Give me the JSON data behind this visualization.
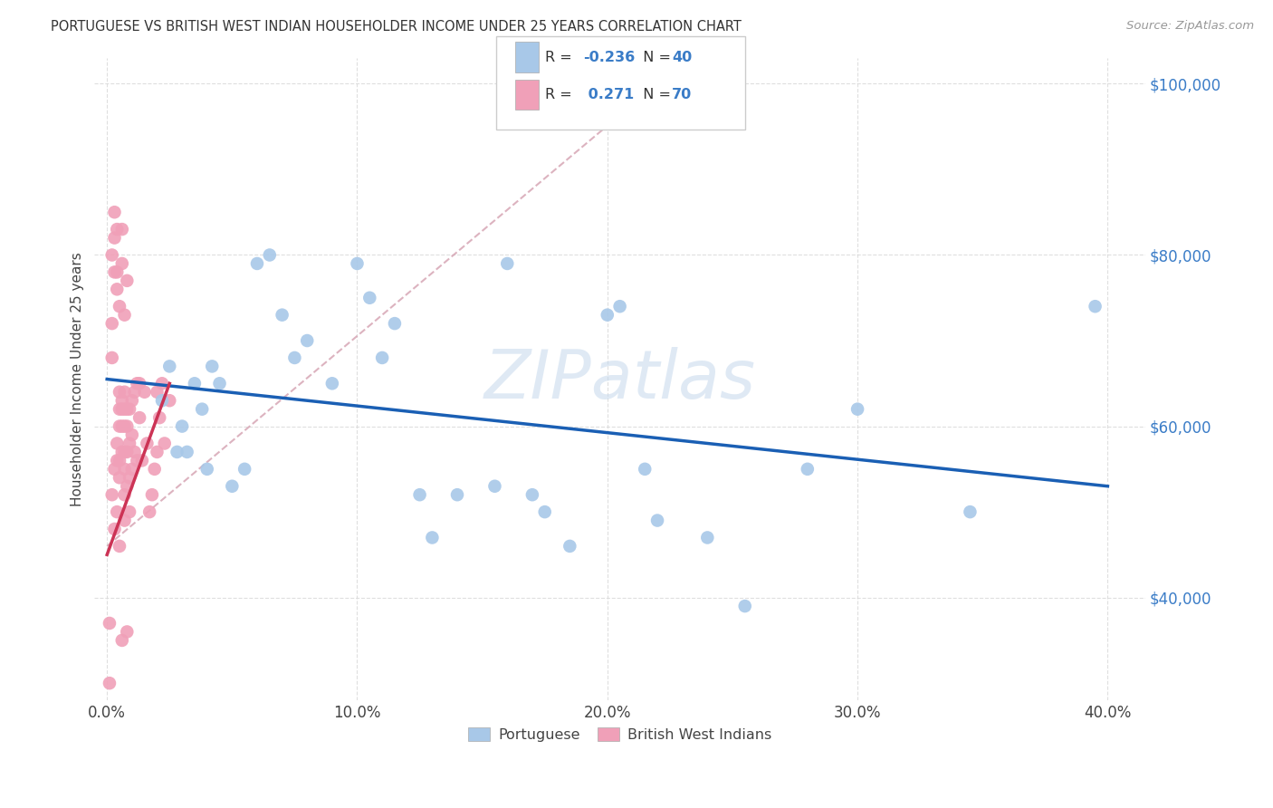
{
  "title": "PORTUGUESE VS BRITISH WEST INDIAN HOUSEHOLDER INCOME UNDER 25 YEARS CORRELATION CHART",
  "source": "Source: ZipAtlas.com",
  "xlabel_vals": [
    0.0,
    0.1,
    0.2,
    0.3,
    0.4
  ],
  "ylabel_vals": [
    40000,
    60000,
    80000,
    100000
  ],
  "xlim": [
    -0.005,
    0.415
  ],
  "ylim": [
    28000,
    103000
  ],
  "watermark": "ZIPatlas",
  "blue_color": "#a8c8e8",
  "pink_color": "#f0a0b8",
  "blue_trend_color": "#1a5fb4",
  "pink_trend_color": "#cc3355",
  "dashed_color": "#d4a0b0",
  "background_color": "#ffffff",
  "grid_color": "#d8d8d8",
  "r_blue": "-0.236",
  "n_blue": "40",
  "r_pink": "0.271",
  "n_pink": "70",
  "portuguese_x": [
    0.022,
    0.025,
    0.028,
    0.03,
    0.032,
    0.035,
    0.038,
    0.04,
    0.042,
    0.045,
    0.05,
    0.055,
    0.06,
    0.065,
    0.07,
    0.075,
    0.08,
    0.09,
    0.1,
    0.105,
    0.11,
    0.115,
    0.125,
    0.13,
    0.14,
    0.155,
    0.16,
    0.17,
    0.175,
    0.185,
    0.2,
    0.205,
    0.215,
    0.22,
    0.24,
    0.255,
    0.28,
    0.3,
    0.345,
    0.395
  ],
  "portuguese_y": [
    63000,
    67000,
    57000,
    60000,
    57000,
    65000,
    62000,
    55000,
    67000,
    65000,
    53000,
    55000,
    79000,
    80000,
    73000,
    68000,
    70000,
    65000,
    79000,
    75000,
    68000,
    72000,
    52000,
    47000,
    52000,
    53000,
    79000,
    52000,
    50000,
    46000,
    73000,
    74000,
    55000,
    49000,
    47000,
    39000,
    55000,
    62000,
    50000,
    74000
  ],
  "bwi_x": [
    0.002,
    0.003,
    0.003,
    0.004,
    0.004,
    0.004,
    0.005,
    0.005,
    0.005,
    0.005,
    0.005,
    0.006,
    0.006,
    0.006,
    0.006,
    0.007,
    0.007,
    0.007,
    0.007,
    0.007,
    0.007,
    0.008,
    0.008,
    0.008,
    0.008,
    0.009,
    0.009,
    0.009,
    0.009,
    0.01,
    0.01,
    0.01,
    0.011,
    0.011,
    0.012,
    0.012,
    0.013,
    0.013,
    0.014,
    0.015,
    0.016,
    0.017,
    0.018,
    0.019,
    0.02,
    0.02,
    0.021,
    0.022,
    0.023,
    0.025,
    0.001,
    0.001,
    0.002,
    0.002,
    0.002,
    0.003,
    0.003,
    0.003,
    0.004,
    0.004,
    0.004,
    0.005,
    0.005,
    0.006,
    0.006,
    0.006,
    0.007,
    0.007,
    0.008,
    0.008
  ],
  "bwi_y": [
    52000,
    48000,
    55000,
    50000,
    56000,
    58000,
    54000,
    56000,
    60000,
    62000,
    64000,
    57000,
    60000,
    62000,
    63000,
    52000,
    55000,
    57000,
    60000,
    62000,
    64000,
    53000,
    57000,
    60000,
    62000,
    50000,
    54000,
    58000,
    62000,
    55000,
    59000,
    63000,
    57000,
    64000,
    56000,
    65000,
    61000,
    65000,
    56000,
    64000,
    58000,
    50000,
    52000,
    55000,
    57000,
    64000,
    61000,
    65000,
    58000,
    63000,
    30000,
    37000,
    68000,
    72000,
    80000,
    78000,
    82000,
    85000,
    76000,
    78000,
    83000,
    46000,
    74000,
    79000,
    83000,
    35000,
    73000,
    49000,
    77000,
    36000
  ]
}
